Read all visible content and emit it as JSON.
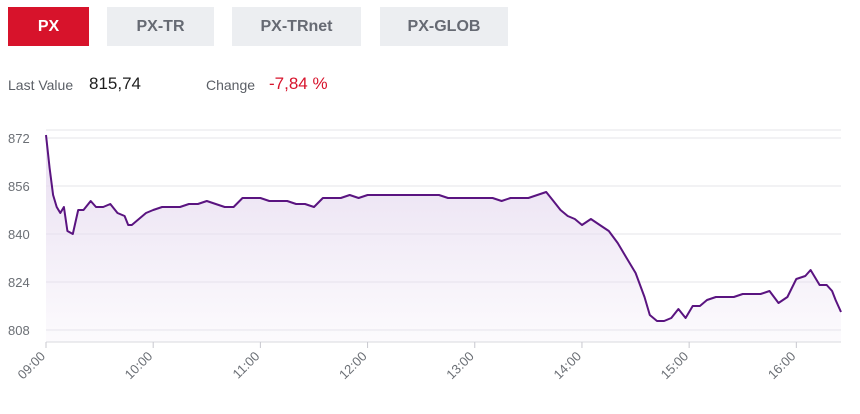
{
  "tabs": [
    {
      "label": "PX",
      "active": true
    },
    {
      "label": "PX-TR",
      "active": false
    },
    {
      "label": "PX-TRnet",
      "active": false
    },
    {
      "label": "PX-GLOB",
      "active": false
    }
  ],
  "stats": {
    "last_value_label": "Last Value",
    "last_value": "815,74",
    "change_label": "Change",
    "change_value": "-7,84 %"
  },
  "colors": {
    "accent": "#d7132b",
    "tab_inactive_bg": "#eceef1",
    "line": "#5a1480",
    "fill": "#e7dcf0",
    "grid": "#e6e6ea",
    "negative": "#d7132b"
  },
  "chart_data": {
    "type": "area",
    "xlabel": "",
    "ylabel": "",
    "ylim": [
      804,
      878
    ],
    "xlim": [
      "09:00",
      "16:25"
    ],
    "y_ticks": [
      808,
      824,
      840,
      856,
      872
    ],
    "x_ticks": [
      "09:00",
      "10:00",
      "11:00",
      "12:00",
      "13:00",
      "14:00",
      "15:00",
      "16:00"
    ],
    "grid": "horizontal",
    "series": [
      {
        "points": [
          [
            "09:00",
            873
          ],
          [
            "09:02",
            862
          ],
          [
            "09:04",
            853
          ],
          [
            "09:06",
            849
          ],
          [
            "09:08",
            847
          ],
          [
            "09:10",
            849
          ],
          [
            "09:12",
            841
          ],
          [
            "09:15",
            840
          ],
          [
            "09:18",
            848
          ],
          [
            "09:21",
            848
          ],
          [
            "09:25",
            851
          ],
          [
            "09:28",
            849
          ],
          [
            "09:32",
            849
          ],
          [
            "09:36",
            850
          ],
          [
            "09:40",
            847
          ],
          [
            "09:44",
            846
          ],
          [
            "09:46",
            843
          ],
          [
            "09:48",
            843
          ],
          [
            "09:52",
            845
          ],
          [
            "09:56",
            847
          ],
          [
            "10:00",
            848
          ],
          [
            "10:05",
            849
          ],
          [
            "10:10",
            849
          ],
          [
            "10:15",
            849
          ],
          [
            "10:20",
            850
          ],
          [
            "10:25",
            850
          ],
          [
            "10:30",
            851
          ],
          [
            "10:35",
            850
          ],
          [
            "10:40",
            849
          ],
          [
            "10:45",
            849
          ],
          [
            "10:50",
            852
          ],
          [
            "10:55",
            852
          ],
          [
            "11:00",
            852
          ],
          [
            "11:05",
            851
          ],
          [
            "11:10",
            851
          ],
          [
            "11:15",
            851
          ],
          [
            "11:20",
            850
          ],
          [
            "11:25",
            850
          ],
          [
            "11:30",
            849
          ],
          [
            "11:35",
            852
          ],
          [
            "11:40",
            852
          ],
          [
            "11:45",
            852
          ],
          [
            "11:50",
            853
          ],
          [
            "11:55",
            852
          ],
          [
            "12:00",
            853
          ],
          [
            "12:05",
            853
          ],
          [
            "12:10",
            853
          ],
          [
            "12:15",
            853
          ],
          [
            "12:20",
            853
          ],
          [
            "12:25",
            853
          ],
          [
            "12:30",
            853
          ],
          [
            "12:35",
            853
          ],
          [
            "12:40",
            853
          ],
          [
            "12:45",
            852
          ],
          [
            "12:50",
            852
          ],
          [
            "12:55",
            852
          ],
          [
            "13:00",
            852
          ],
          [
            "13:05",
            852
          ],
          [
            "13:10",
            852
          ],
          [
            "13:15",
            851
          ],
          [
            "13:20",
            852
          ],
          [
            "13:25",
            852
          ],
          [
            "13:30",
            852
          ],
          [
            "13:35",
            853
          ],
          [
            "13:40",
            854
          ],
          [
            "13:44",
            851
          ],
          [
            "13:48",
            848
          ],
          [
            "13:52",
            846
          ],
          [
            "13:56",
            845
          ],
          [
            "14:00",
            843
          ],
          [
            "14:05",
            845
          ],
          [
            "14:10",
            843
          ],
          [
            "14:15",
            841
          ],
          [
            "14:20",
            837
          ],
          [
            "14:25",
            832
          ],
          [
            "14:30",
            827
          ],
          [
            "14:35",
            819
          ],
          [
            "14:38",
            813
          ],
          [
            "14:42",
            811
          ],
          [
            "14:46",
            811
          ],
          [
            "14:50",
            812
          ],
          [
            "14:54",
            815
          ],
          [
            "14:58",
            812
          ],
          [
            "15:02",
            816
          ],
          [
            "15:06",
            816
          ],
          [
            "15:10",
            818
          ],
          [
            "15:15",
            819
          ],
          [
            "15:20",
            819
          ],
          [
            "15:25",
            819
          ],
          [
            "15:30",
            820
          ],
          [
            "15:35",
            820
          ],
          [
            "15:40",
            820
          ],
          [
            "15:45",
            821
          ],
          [
            "15:50",
            817
          ],
          [
            "15:55",
            819
          ],
          [
            "16:00",
            825
          ],
          [
            "16:05",
            826
          ],
          [
            "16:08",
            828
          ],
          [
            "16:10",
            826
          ],
          [
            "16:13",
            823
          ],
          [
            "16:17",
            823
          ],
          [
            "16:20",
            821
          ],
          [
            "16:22",
            818
          ],
          [
            "16:25",
            814
          ]
        ]
      }
    ]
  }
}
